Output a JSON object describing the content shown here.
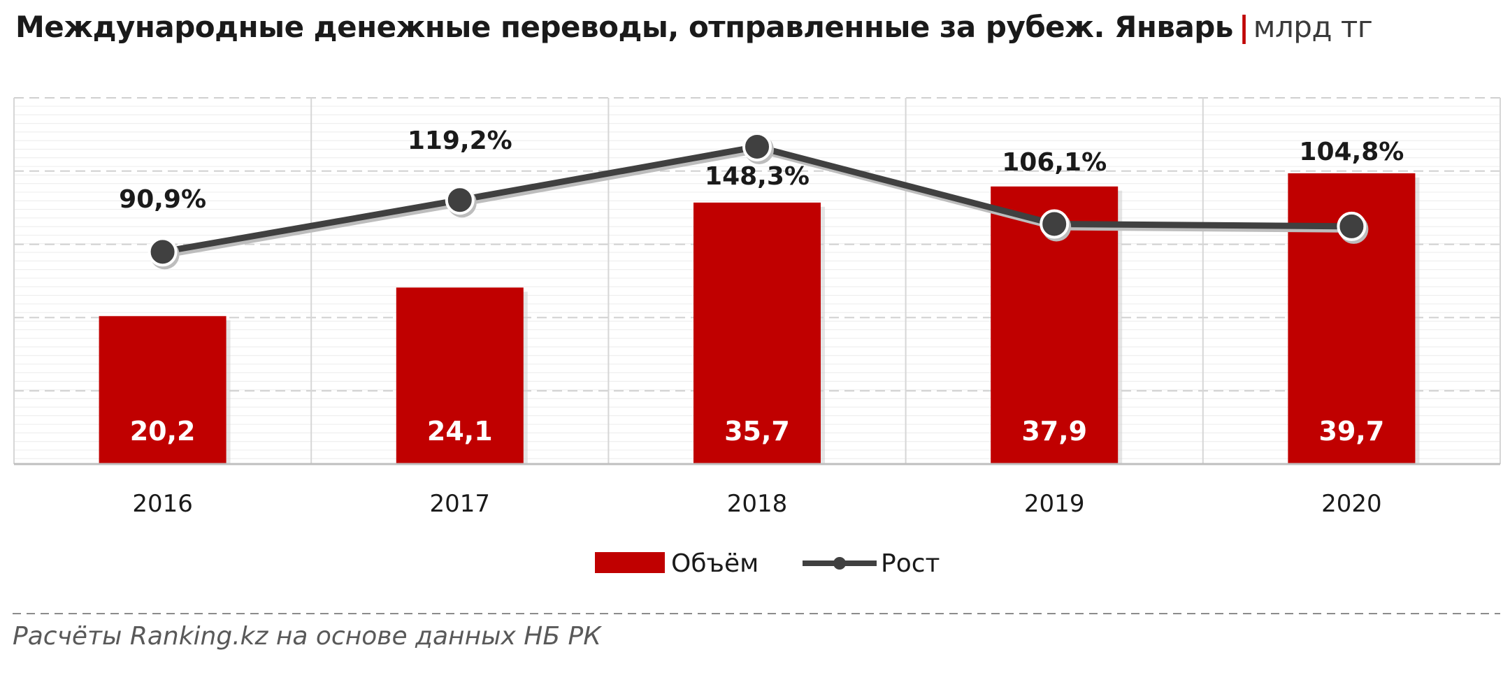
{
  "chart_data": {
    "type": "bar",
    "title": "Международные денежные переводы, отправленные за рубеж. Январь",
    "unit": "млрд тг",
    "categories": [
      "2016",
      "2017",
      "2018",
      "2019",
      "2020"
    ],
    "series": [
      {
        "name": "Объём",
        "type": "bar",
        "color": "#c00000",
        "values": [
          20.2,
          24.1,
          35.7,
          37.9,
          39.7
        ],
        "labels": [
          "20,2",
          "24,1",
          "35,7",
          "37,9",
          "39,7"
        ]
      },
      {
        "name": "Рост",
        "type": "line",
        "color": "#404040",
        "values": [
          90.9,
          119.2,
          148.3,
          106.1,
          104.8
        ],
        "labels": [
          "90,9%",
          "119,2%",
          "148,3%",
          "106,1%",
          "104,8%"
        ]
      }
    ],
    "ylim_bars": [
      0,
      50
    ],
    "ylim_line": [
      -25,
      175
    ],
    "grid": true,
    "legend_position": "bottom"
  },
  "source_note": "Расчёты Ranking.kz на основе данных НБ РК"
}
